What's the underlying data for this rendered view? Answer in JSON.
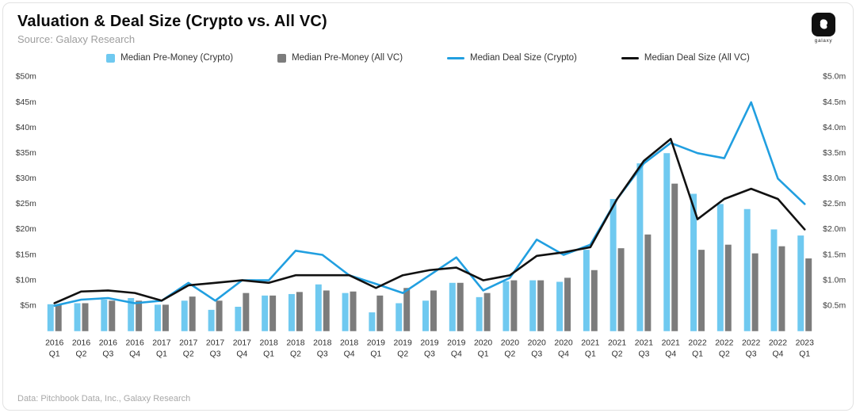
{
  "header": {
    "title": "Valuation & Deal Size (Crypto vs. All VC)",
    "source": "Source: Galaxy Research",
    "logo_text": "galaxy"
  },
  "footer": {
    "note": "Data: Pitchbook Data, Inc., Galaxy Research"
  },
  "chart_data": {
    "type": "bar",
    "subtype": "grouped bars with overlaid lines (dual axis)",
    "title": "Valuation & Deal Size (Crypto vs. All VC)",
    "legend_position": "top",
    "grid": false,
    "categories": [
      "2016 Q1",
      "2016 Q2",
      "2016 Q3",
      "2016 Q4",
      "2017 Q1",
      "2017 Q2",
      "2017 Q3",
      "2017 Q4",
      "2018 Q1",
      "2018 Q2",
      "2018 Q3",
      "2018 Q4",
      "2019 Q1",
      "2019 Q2",
      "2019 Q3",
      "2019 Q4",
      "2020 Q1",
      "2020 Q2",
      "2020 Q3",
      "2020 Q4",
      "2021 Q1",
      "2021 Q2",
      "2021 Q3",
      "2021 Q4",
      "2022 Q1",
      "2022 Q2",
      "2022 Q3",
      "2022 Q4",
      "2023 Q1"
    ],
    "left_axis": {
      "min": 0,
      "max": 50,
      "ticks": [
        {
          "value": 5,
          "label": "$5m"
        },
        {
          "value": 10,
          "label": "$10m"
        },
        {
          "value": 15,
          "label": "$15m"
        },
        {
          "value": 20,
          "label": "$20m"
        },
        {
          "value": 25,
          "label": "$25m"
        },
        {
          "value": 30,
          "label": "$30m"
        },
        {
          "value": 35,
          "label": "$35m"
        },
        {
          "value": 40,
          "label": "$40m"
        },
        {
          "value": 45,
          "label": "$45m"
        },
        {
          "value": 50,
          "label": "$50m"
        }
      ]
    },
    "right_axis": {
      "min": 0,
      "max": 5,
      "ticks": [
        {
          "value": 0.5,
          "label": "$0.5m"
        },
        {
          "value": 1.0,
          "label": "$1.0m"
        },
        {
          "value": 1.5,
          "label": "$1.5m"
        },
        {
          "value": 2.0,
          "label": "$2.0m"
        },
        {
          "value": 2.5,
          "label": "$2.5m"
        },
        {
          "value": 3.0,
          "label": "$3.0m"
        },
        {
          "value": 3.5,
          "label": "$3.5m"
        },
        {
          "value": 4.0,
          "label": "$4.0m"
        },
        {
          "value": 4.5,
          "label": "$4.5m"
        },
        {
          "value": 5.0,
          "label": "$5.0m"
        }
      ]
    },
    "series": [
      {
        "name": "Median Pre-Money (Crypto)",
        "slug": "median-premoney-crypto",
        "kind": "bar",
        "axis": "left",
        "color": "#6FC9F0",
        "values": [
          5.3,
          5.5,
          6.2,
          6.5,
          5.2,
          6.0,
          4.2,
          4.8,
          7.0,
          7.3,
          9.2,
          7.5,
          3.7,
          5.5,
          6.0,
          9.5,
          6.7,
          9.8,
          10.0,
          9.7,
          16.0,
          26.0,
          33.0,
          35.0,
          27.0,
          25.0,
          24.0,
          20.0,
          18.8
        ]
      },
      {
        "name": "Median Pre-Money (All VC)",
        "slug": "median-premoney-allvc",
        "kind": "bar",
        "axis": "left",
        "color": "#7C7C7C",
        "values": [
          5.2,
          5.5,
          6.0,
          6.0,
          5.2,
          6.8,
          6.0,
          7.5,
          7.0,
          7.7,
          8.0,
          7.8,
          7.0,
          8.5,
          8.0,
          9.5,
          7.5,
          10.0,
          10.0,
          10.5,
          12.0,
          16.3,
          19.0,
          29.0,
          16.0,
          17.0,
          15.3,
          16.7,
          14.3
        ]
      },
      {
        "name": "Median Deal Size (Crypto)",
        "slug": "median-dealsize-crypto",
        "kind": "line",
        "axis": "right",
        "color": "#219FE0",
        "values": [
          0.5,
          0.62,
          0.65,
          0.55,
          0.6,
          0.95,
          0.6,
          1.0,
          1.0,
          1.58,
          1.5,
          1.1,
          0.93,
          0.75,
          1.1,
          1.45,
          0.8,
          1.05,
          1.8,
          1.5,
          1.7,
          2.6,
          3.3,
          3.7,
          3.5,
          3.4,
          4.5,
          3.0,
          2.5
        ]
      },
      {
        "name": "Median Deal Size (All VC)",
        "slug": "median-dealsize-allvc",
        "kind": "line",
        "axis": "right",
        "color": "#111111",
        "values": [
          0.55,
          0.78,
          0.8,
          0.75,
          0.6,
          0.9,
          0.95,
          1.0,
          0.95,
          1.1,
          1.1,
          1.1,
          0.85,
          1.1,
          1.2,
          1.25,
          1.0,
          1.1,
          1.48,
          1.55,
          1.65,
          2.6,
          3.35,
          3.78,
          2.2,
          2.6,
          2.8,
          2.6,
          2.0
        ]
      }
    ]
  }
}
